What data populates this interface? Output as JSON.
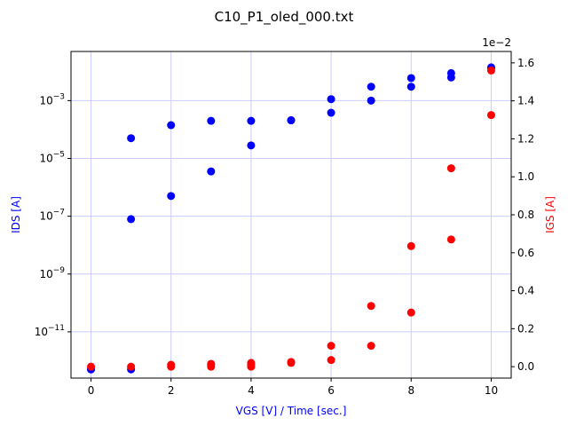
{
  "chart_data": {
    "type": "scatter",
    "title": "C10_P1_oled_000.txt",
    "xlabel": "VGS [V] / Time [sec.]",
    "ylabel_left": "IDS [A]",
    "ylabel_right": "IGS [A]",
    "right_axis_multiplier": "1e−2",
    "x_ticks": [
      "0",
      "2",
      "4",
      "6",
      "8",
      "10"
    ],
    "left_y_ticks": [
      {
        "base": "10",
        "exp": "−3"
      },
      {
        "base": "10",
        "exp": "−5"
      },
      {
        "base": "10",
        "exp": "−7"
      },
      {
        "base": "10",
        "exp": "−9"
      },
      {
        "base": "10",
        "exp": "−11"
      }
    ],
    "right_y_ticks": [
      "0.0",
      "0.2",
      "0.4",
      "0.6",
      "0.8",
      "1.0",
      "1.2",
      "1.4",
      "1.6"
    ],
    "xlim": [
      -0.5,
      10.5
    ],
    "left_ylim_log10": [
      -12.6,
      -1.3
    ],
    "left_scale": "log",
    "right_ylim": [
      -0.06,
      1.66
    ],
    "right_scale_units": "x1e-2",
    "grid": true,
    "colors": {
      "ids": "#0000ff",
      "igs": "#ff0000",
      "grid": "#ccccff",
      "axis": "#000000"
    },
    "series": [
      {
        "axis": "left",
        "color": "#0000ff",
        "x": [
          0,
          0,
          1,
          1,
          1,
          2,
          2,
          3,
          3,
          4,
          4,
          5,
          5,
          6,
          6,
          7,
          7,
          8,
          8,
          9,
          9,
          10,
          10
        ],
        "y_log10": [
          -12.3,
          -12.3,
          -7.1,
          -4.3,
          -12.3,
          -6.3,
          -3.85,
          -5.45,
          -3.7,
          -4.55,
          -3.7,
          -3.68,
          -3.68,
          -3.42,
          -2.95,
          -3.0,
          -2.52,
          -2.52,
          -2.22,
          -2.2,
          -2.05,
          -1.88,
          -1.85
        ]
      },
      {
        "axis": "right",
        "color": "#ff0000",
        "x": [
          0,
          1,
          2,
          2,
          3,
          3,
          3,
          4,
          4,
          4,
          5,
          5,
          6,
          6,
          7,
          7,
          8,
          8,
          9,
          9,
          10,
          10
        ],
        "y": [
          0.0,
          0.0,
          0.0,
          0.01,
          0.0,
          0.01,
          0.015,
          0.0,
          0.01,
          0.02,
          0.02,
          0.025,
          0.035,
          0.11,
          0.11,
          0.32,
          0.285,
          0.635,
          0.67,
          1.045,
          1.325,
          1.56
        ]
      }
    ]
  }
}
